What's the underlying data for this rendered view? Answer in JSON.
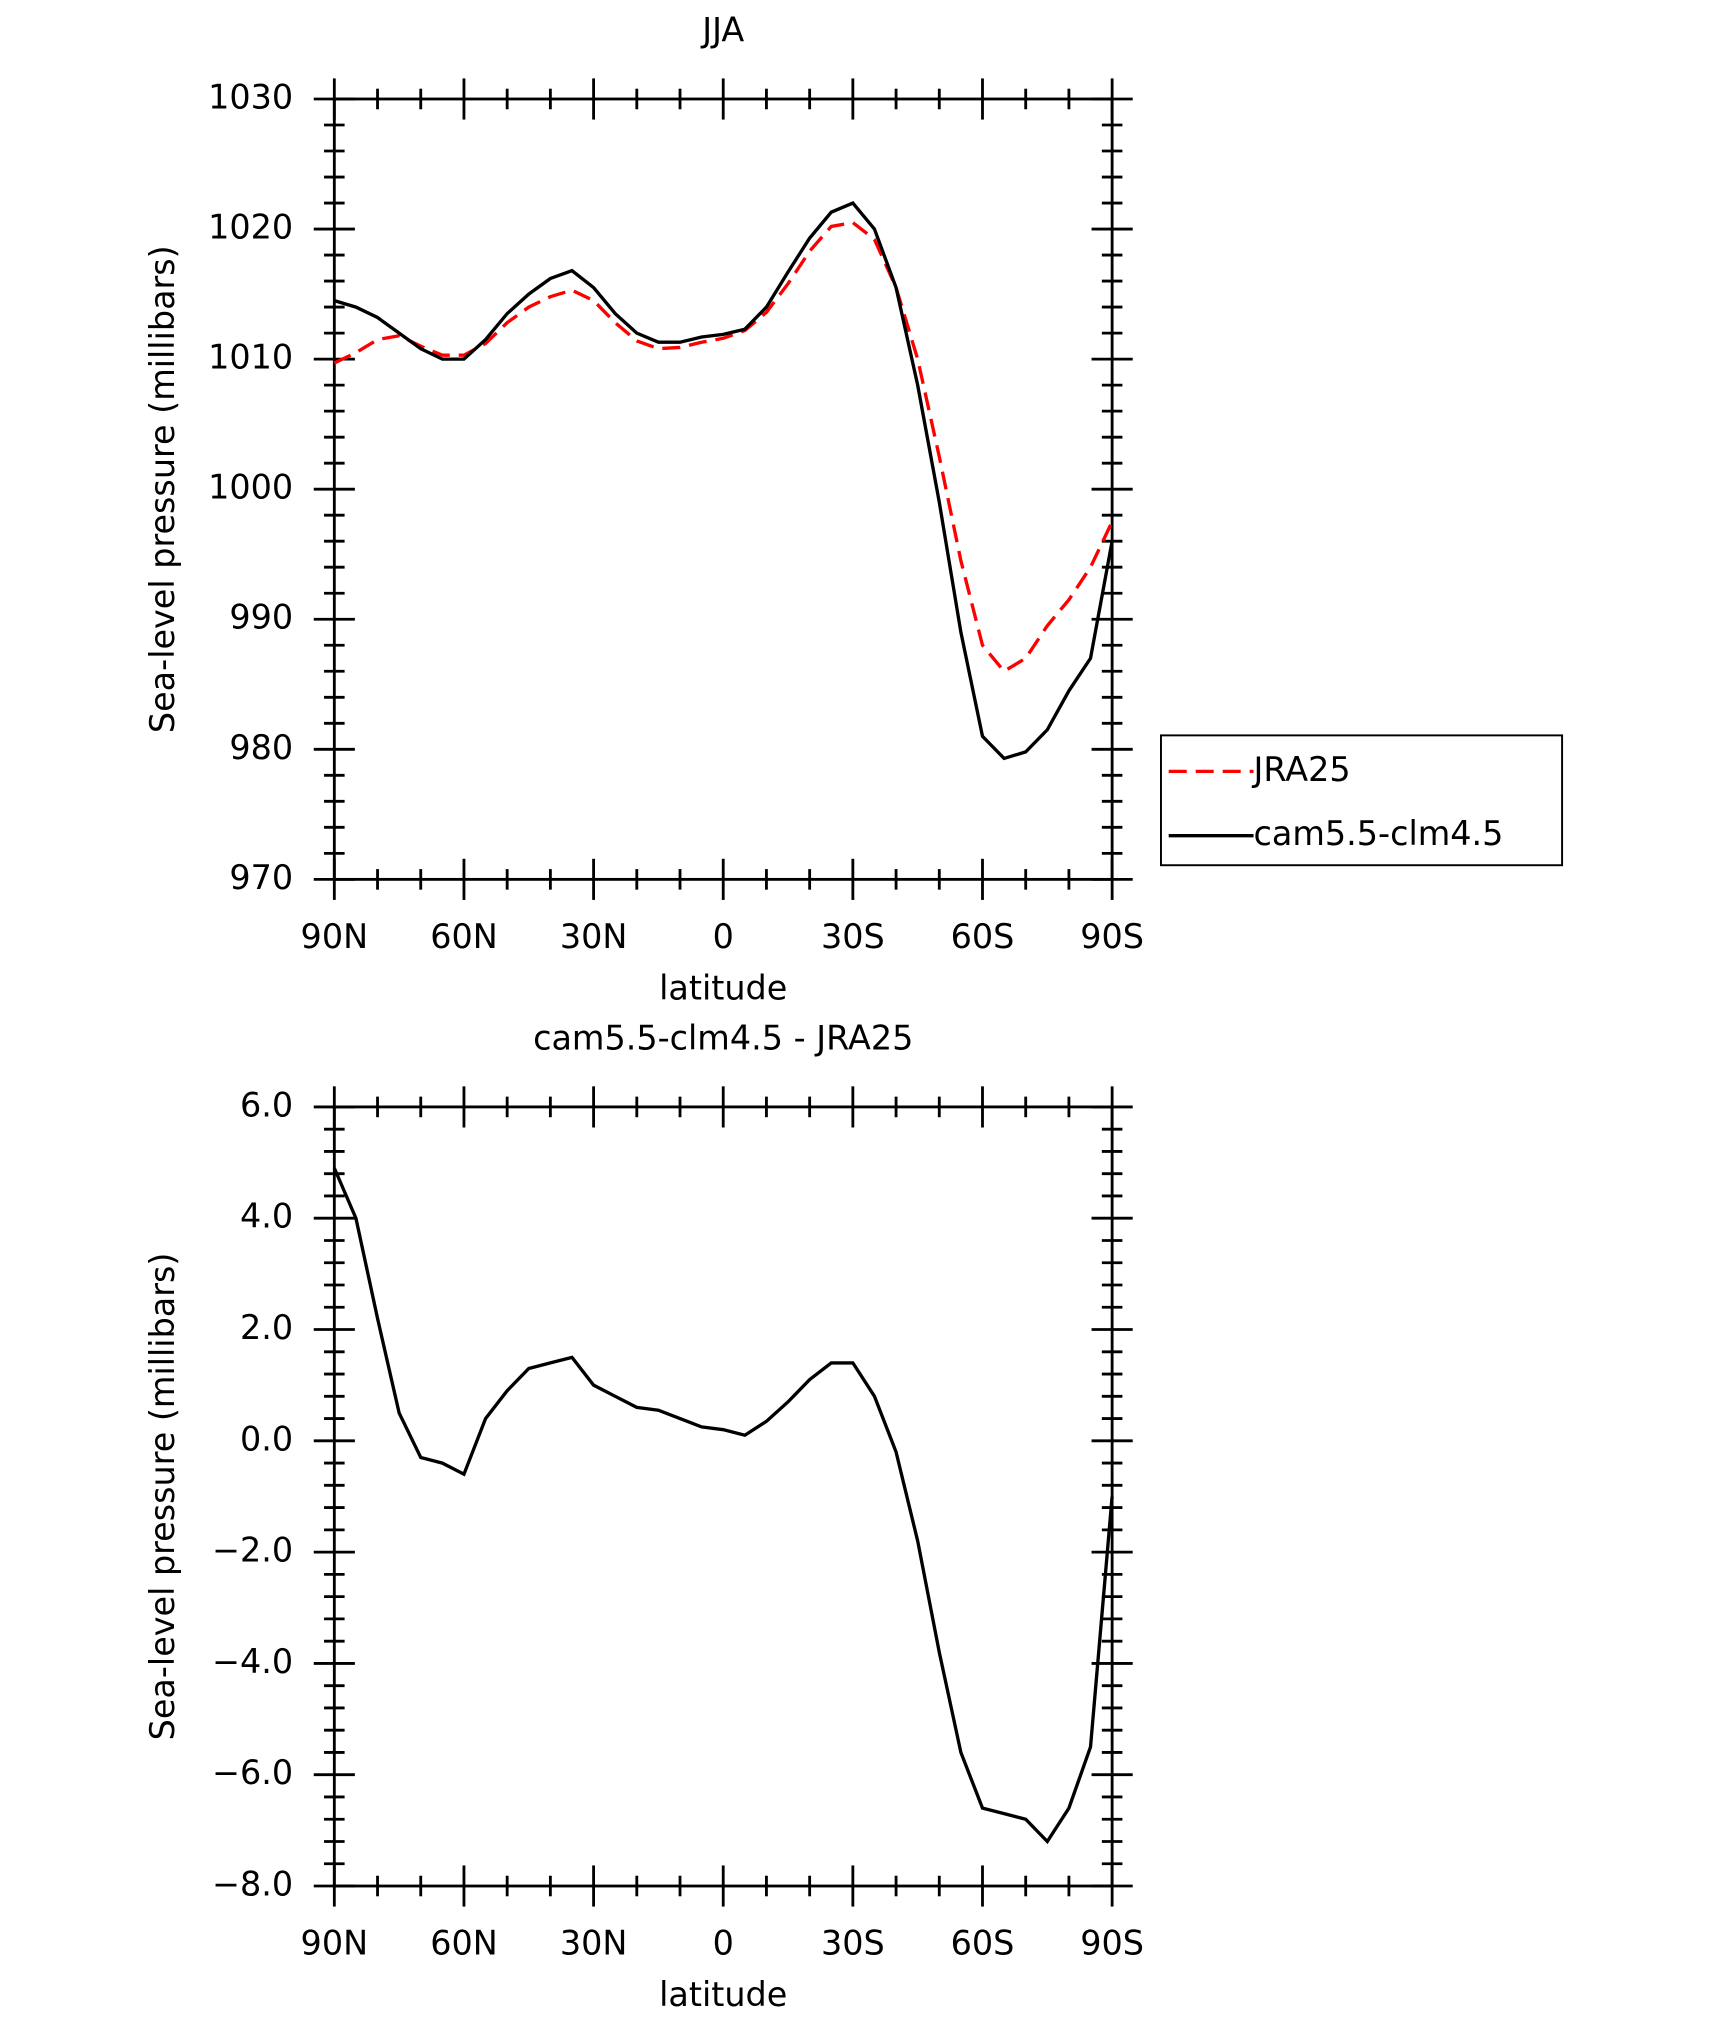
{
  "chart_data": [
    {
      "type": "line",
      "title": "JJA",
      "x_label": "latitude",
      "y_label": "Sea-level pressure (millibars)",
      "x": [
        90,
        85,
        80,
        75,
        70,
        65,
        60,
        55,
        50,
        45,
        40,
        35,
        30,
        25,
        20,
        15,
        10,
        5,
        0,
        -5,
        -10,
        -15,
        -20,
        -25,
        -30,
        -35,
        -40,
        -45,
        -50,
        -55,
        -60,
        -65,
        -70,
        -75,
        -80,
        -85,
        -90
      ],
      "series": [
        {
          "name": "JRA25",
          "color": "#ff0000",
          "line_style": "dashed",
          "values": [
            1009.7,
            1010.5,
            1011.5,
            1011.8,
            1011,
            1010.3,
            1010.3,
            1011.2,
            1012.8,
            1014,
            1014.8,
            1015.3,
            1014.5,
            1012.8,
            1011.4,
            1010.8,
            1010.9,
            1011.3,
            1011.6,
            1012.2,
            1013.6,
            1015.8,
            1018.3,
            1020.2,
            1020.5,
            1019.2,
            1015.5,
            1010,
            1002.5,
            994.5,
            988,
            986,
            987,
            989.5,
            991.5,
            994,
            997.5
          ]
        },
        {
          "name": "cam5.5-clm4.5",
          "color": "#000000",
          "line_style": "solid",
          "values": [
            1014.5,
            1014,
            1013.2,
            1012,
            1010.8,
            1010,
            1010,
            1011.5,
            1013.5,
            1015,
            1016.2,
            1016.8,
            1015.5,
            1013.5,
            1012,
            1011.3,
            1011.3,
            1011.7,
            1011.9,
            1012.3,
            1014,
            1016.7,
            1019.3,
            1021.3,
            1022,
            1020,
            1015.5,
            1008,
            999,
            989,
            981,
            979.3,
            979.8,
            981.5,
            984.5,
            987,
            996
          ]
        }
      ],
      "xlim": [
        90,
        -90
      ],
      "xticks": [
        {
          "value": 90,
          "label": "90N"
        },
        {
          "value": 60,
          "label": "60N"
        },
        {
          "value": 30,
          "label": "30N"
        },
        0,
        {
          "value": -30,
          "label": "30S"
        },
        {
          "value": -60,
          "label": "60S"
        },
        {
          "value": -90,
          "label": "90S"
        }
      ],
      "ylim": [
        970,
        1030
      ],
      "yticks": [
        970,
        980,
        990,
        1000,
        1010,
        1020,
        1030
      ],
      "legend": "outside-right"
    },
    {
      "type": "line",
      "title": "cam5.5-clm4.5 - JRA25",
      "x_label": "latitude",
      "y_label": "Sea-level pressure (millibars)",
      "x": [
        90,
        85,
        80,
        75,
        70,
        65,
        60,
        55,
        50,
        45,
        40,
        35,
        30,
        25,
        20,
        15,
        10,
        5,
        0,
        -5,
        -10,
        -15,
        -20,
        -25,
        -30,
        -35,
        -40,
        -45,
        -50,
        -55,
        -60,
        -65,
        -70,
        -75,
        -80,
        -85,
        -90
      ],
      "series": [
        {
          "color": "#000000",
          "line_style": "solid",
          "values": [
            4.9,
            4.0,
            2.2,
            0.5,
            -0.3,
            -0.4,
            -0.6,
            0.4,
            0.9,
            1.3,
            1.4,
            1.5,
            1.0,
            0.8,
            0.6,
            0.55,
            0.4,
            0.25,
            0.2,
            0.1,
            0.35,
            0.7,
            1.1,
            1.4,
            1.4,
            0.8,
            -0.2,
            -1.8,
            -3.8,
            -5.6,
            -6.6,
            -6.7,
            -6.8,
            -7.2,
            -6.6,
            -5.5,
            -1.0
          ]
        }
      ],
      "xlim": [
        90,
        -90
      ],
      "xticks": [
        {
          "value": 90,
          "label": "90N"
        },
        {
          "value": 60,
          "label": "60N"
        },
        {
          "value": 30,
          "label": "30N"
        },
        0,
        {
          "value": -30,
          "label": "30S"
        },
        {
          "value": -60,
          "label": "60S"
        },
        {
          "value": -90,
          "label": "90S"
        }
      ],
      "ylim": [
        -8,
        6
      ],
      "yticks": [
        {
          "value": -8,
          "label": "−8.0"
        },
        {
          "value": -6,
          "label": "−6.0"
        },
        {
          "value": -4,
          "label": "−4.0"
        },
        {
          "value": -2,
          "label": "−2.0"
        },
        {
          "value": 0,
          "label": "0.0"
        },
        {
          "value": 2,
          "label": "2.0"
        },
        {
          "value": 4,
          "label": "4.0"
        },
        {
          "value": 6,
          "label": "6.0"
        }
      ]
    }
  ]
}
